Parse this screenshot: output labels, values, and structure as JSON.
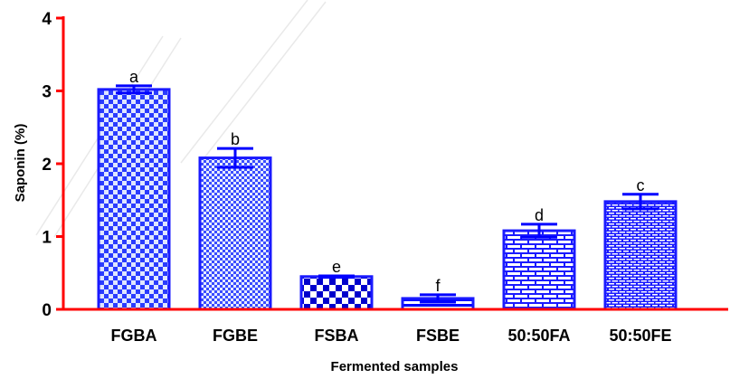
{
  "chart_data": {
    "type": "bar",
    "title": "",
    "xlabel": "Fermented samples",
    "ylabel": "Saponin (%)",
    "ylim": [
      0,
      4
    ],
    "yticks": [
      "0",
      "1",
      "2",
      "3",
      "4"
    ],
    "grid": false,
    "categories": [
      "FGBA",
      "FGBE",
      "FSBA",
      "FSBE",
      "50:50FA",
      "50:50FE"
    ],
    "values": [
      3.02,
      2.08,
      0.45,
      0.15,
      1.08,
      1.48
    ],
    "errors": [
      0.05,
      0.13,
      0.01,
      0.05,
      0.09,
      0.1
    ],
    "significance_letters": [
      "a",
      "b",
      "e",
      "f",
      "d",
      "c"
    ],
    "patterns": [
      "checker",
      "checker-fine",
      "checker-bold",
      "hatch",
      "brick",
      "brick-fine"
    ],
    "colors": {
      "bar": "#1a1aff",
      "axis": "#ff0000",
      "error_bar": "#0000ff"
    }
  }
}
